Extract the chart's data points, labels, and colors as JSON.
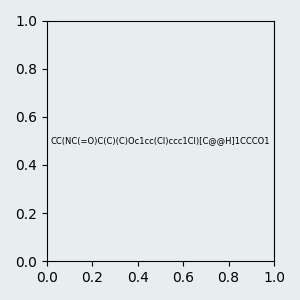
{
  "smiles": "CC(NC(=O)C(C)(C)Oc1cc(Cl)ccc1Cl)[C@@H]1CCCO1",
  "image_size": 300,
  "background_color": "#e8eef0",
  "title": "",
  "atom_colors": {
    "O": "#ff0000",
    "N": "#0000ff",
    "Cl": "#00aa00",
    "C": "#000000",
    "H": "#888888"
  }
}
